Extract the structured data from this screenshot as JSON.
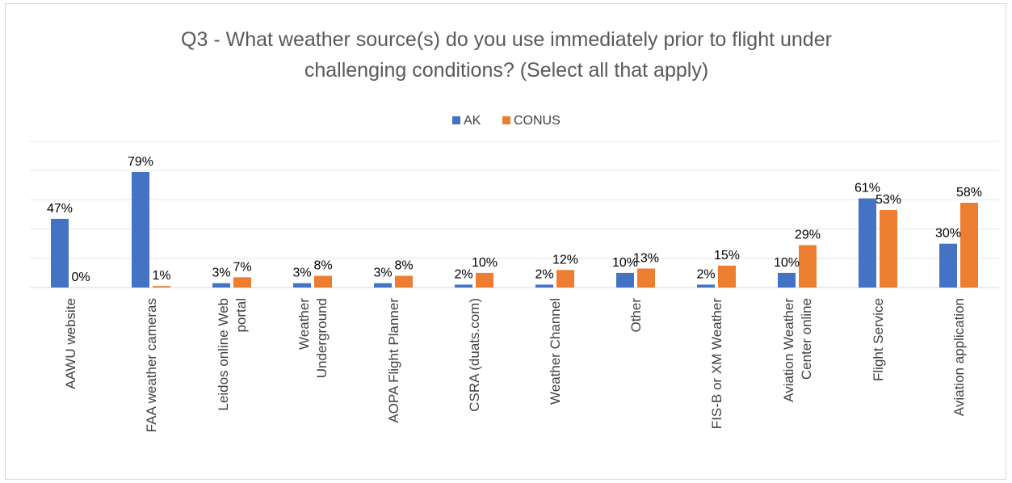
{
  "chart_data": {
    "type": "bar",
    "title": "Q3 - What weather source(s) do you use immediately prior to flight under challenging conditions? (Select all that apply)",
    "title_lines": [
      "Q3 - What weather source(s) do you use immediately prior to flight under",
      "challenging conditions? (Select all that apply)"
    ],
    "categories": [
      "AAWU website",
      "FAA weather cameras",
      "Leidos online Web portal",
      "Weather Underground",
      "AOPA Flight Planner",
      "CSRA (duats.com)",
      "Weather Channel",
      "Other",
      "FIS-B or XM Weather",
      "Aviation Weather Center online",
      "Flight Service",
      "Aviation application"
    ],
    "category_label_lines": [
      [
        "AAWU website"
      ],
      [
        "FAA weather cameras"
      ],
      [
        "Leidos online Web",
        "portal"
      ],
      [
        "Weather",
        "Underground"
      ],
      [
        "AOPA Flight Planner"
      ],
      [
        "CSRA (duats.com)"
      ],
      [
        "Weather Channel"
      ],
      [
        "Other"
      ],
      [
        "FIS-B or XM Weather"
      ],
      [
        "Aviation Weather",
        "Center online"
      ],
      [
        "Flight Service"
      ],
      [
        "Aviation application"
      ]
    ],
    "series": [
      {
        "name": "AK",
        "color": "#4472c4",
        "values": [
          47,
          79,
          3,
          3,
          3,
          2,
          2,
          10,
          2,
          10,
          61,
          30
        ],
        "labels": [
          "47%",
          "79%",
          "3%",
          "3%",
          "3%",
          "2%",
          "2%",
          "10%",
          "2%",
          "10%",
          "61%",
          "30%"
        ]
      },
      {
        "name": "CONUS",
        "color": "#ed7d31",
        "values": [
          0,
          1,
          7,
          8,
          8,
          10,
          12,
          13,
          15,
          29,
          53,
          58
        ],
        "labels": [
          "0%",
          "1%",
          "7%",
          "8%",
          "8%",
          "10%",
          "12%",
          "13%",
          "15%",
          "29%",
          "53%",
          "58%"
        ]
      }
    ],
    "ylim": [
      0,
      100
    ],
    "grid": true,
    "legend_position": "top-center",
    "data_labels": true
  }
}
